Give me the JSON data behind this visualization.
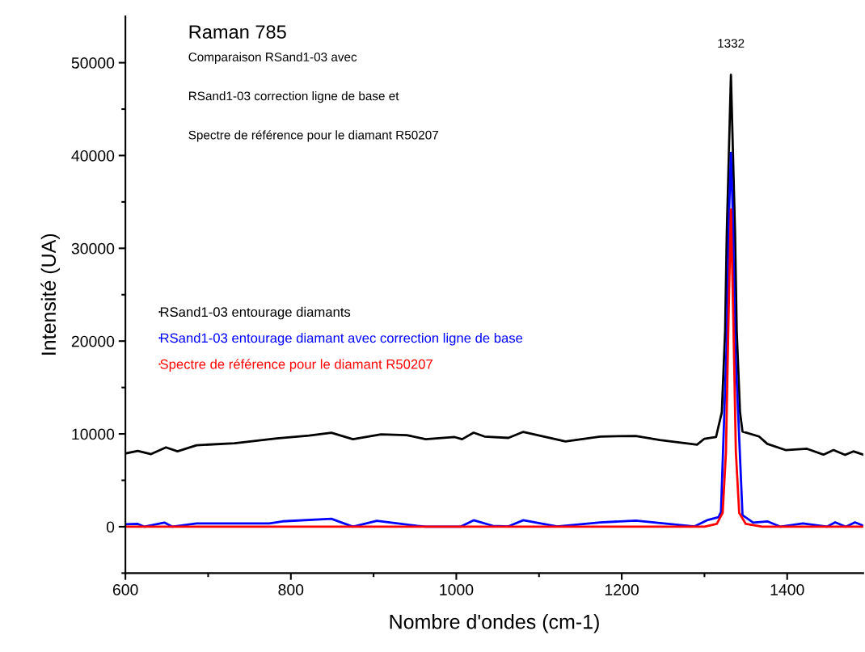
{
  "chart_data": {
    "type": "line",
    "title": "Raman 785",
    "xlabel": "Nombre d'ondes (cm-1)",
    "ylabel": "Intensité (UA)",
    "xlim": [
      600,
      1492
    ],
    "ylim": [
      -5000,
      55000
    ],
    "xticks": [
      600,
      {
        "value": 700,
        "label": null
      },
      800,
      {
        "value": 900,
        "label": null
      },
      1000,
      {
        "value": 1100,
        "label": null
      },
      1200,
      {
        "value": 1300,
        "label": null
      },
      1400
    ],
    "yticks": [
      {
        "value": -5000,
        "label": null
      },
      0,
      {
        "value": 5000,
        "label": null
      },
      10000,
      {
        "value": 15000,
        "label": null
      },
      20000,
      {
        "value": 25000,
        "label": null
      },
      30000,
      {
        "value": 35000,
        "label": null
      },
      40000,
      {
        "value": 45000,
        "label": null
      },
      50000
    ],
    "grid": false,
    "legend": "left",
    "marker": "none",
    "line_style": "solid",
    "annotations": [
      "Comparaison RSand1-03 avec",
      "RSand1-03 correction ligne de base et",
      "Spectre de référence pour le diamant R50207",
      {
        "text": "1332",
        "x": 1332,
        "y": 48700
      }
    ],
    "series": [
      {
        "name": "RSand1-03 entourage diamants",
        "color": "#000000",
        "x": [
          600,
          615,
          631,
          649,
          663,
          686,
          732,
          783,
          822,
          849,
          875,
          909,
          940,
          963,
          998,
          1007,
          1021,
          1034,
          1063,
          1081,
          1132,
          1174,
          1217,
          1246,
          1291,
          1300,
          1314,
          1321,
          1325,
          1327,
          1332,
          1337,
          1339,
          1343,
          1346,
          1366,
          1376,
          1398,
          1424,
          1444,
          1456,
          1470,
          1480,
          1492
        ],
        "values": [
          7900,
          8170,
          7820,
          8550,
          8120,
          8780,
          8990,
          9520,
          9810,
          10130,
          9430,
          9960,
          9870,
          9430,
          9660,
          9430,
          10130,
          9720,
          9570,
          10220,
          9190,
          9720,
          9780,
          9340,
          8840,
          9480,
          9660,
          12350,
          21100,
          31600,
          48700,
          31600,
          21100,
          12350,
          10250,
          9720,
          8930,
          8260,
          8400,
          7770,
          8260,
          7740,
          8120,
          7770
        ]
      },
      {
        "name": "RSand1-03 entourage diamant avec correction ligne de base",
        "color": "#0000ff",
        "x": [
          600,
          615,
          623,
          647,
          657,
          686,
          774,
          790,
          849,
          875,
          904,
          953,
          963,
          1005,
          1021,
          1044,
          1063,
          1081,
          1122,
          1174,
          1217,
          1288,
          1304,
          1317,
          1320,
          1327,
          1329.5,
          1332,
          1334.5,
          1337,
          1346,
          1359,
          1376,
          1392,
          1419,
          1448,
          1458,
          1471,
          1482,
          1492
        ],
        "values": [
          260,
          300,
          0,
          440,
          0,
          350,
          350,
          580,
          850,
          0,
          640,
          90,
          0,
          0,
          700,
          100,
          30,
          700,
          30,
          470,
          650,
          30,
          730,
          1020,
          1600,
          20000,
          33000,
          40300,
          33000,
          20000,
          1250,
          430,
          580,
          0,
          350,
          0,
          470,
          0,
          470,
          100
        ]
      },
      {
        "name": "Spectre de référence pour le diamant R50207",
        "color": "#ff0000",
        "x": [
          600,
          1300,
          1315,
          1322,
          1326,
          1329,
          1332,
          1335,
          1338,
          1342,
          1350,
          1370,
          1492
        ],
        "values": [
          0,
          0,
          300,
          1500,
          8000,
          22000,
          34200,
          22000,
          8000,
          1500,
          300,
          0,
          0
        ]
      }
    ]
  }
}
